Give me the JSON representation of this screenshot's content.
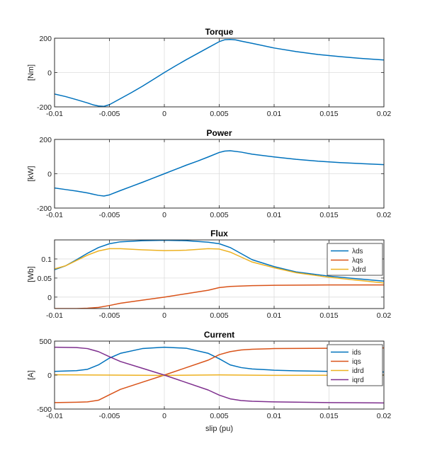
{
  "chart_data": [
    {
      "type": "line",
      "title": "Torque",
      "xlabel": "",
      "ylabel": "[Nm]",
      "xlim": [
        -0.01,
        0.02
      ],
      "ylim": [
        -200,
        200
      ],
      "grid": true,
      "xticks": [
        -0.01,
        -0.005,
        0,
        0.005,
        0.01,
        0.015,
        0.02
      ],
      "xtick_labels": [
        "-0.01",
        "-0.005",
        "0",
        "0.005",
        "0.01",
        "0.015",
        "0.02"
      ],
      "yticks": [
        -200,
        0,
        200
      ],
      "ytick_labels": [
        "-200",
        "0",
        "200"
      ],
      "legend": null,
      "series": [
        {
          "color": "#0072BD",
          "x": [
            -0.01,
            -0.009,
            -0.008,
            -0.007,
            -0.0065,
            -0.006,
            -0.0055,
            -0.005,
            -0.004,
            -0.003,
            -0.002,
            -0.001,
            0,
            0.001,
            0.002,
            0.003,
            0.004,
            0.005,
            0.0055,
            0.006,
            0.0065,
            0.007,
            0.008,
            0.01,
            0.012,
            0.014,
            0.016,
            0.018,
            0.02
          ],
          "y": [
            -125,
            -140,
            -158,
            -177,
            -188,
            -195,
            -197,
            -187,
            -152,
            -117,
            -80,
            -40,
            0,
            38,
            75,
            110,
            145,
            180,
            191,
            193,
            190,
            183,
            170,
            143,
            122,
            105,
            93,
            82,
            73
          ]
        }
      ]
    },
    {
      "type": "line",
      "title": "Power",
      "xlabel": "",
      "ylabel": "[kW]",
      "xlim": [
        -0.01,
        0.02
      ],
      "ylim": [
        -200,
        200
      ],
      "grid": true,
      "xticks": [
        -0.01,
        -0.005,
        0,
        0.005,
        0.01,
        0.015,
        0.02
      ],
      "xtick_labels": [
        "-0.01",
        "-0.005",
        "0",
        "0.005",
        "0.01",
        "0.015",
        "0.02"
      ],
      "yticks": [
        -200,
        0,
        200
      ],
      "ytick_labels": [
        "-200",
        "0",
        "200"
      ],
      "legend": null,
      "series": [
        {
          "color": "#0072BD",
          "x": [
            -0.01,
            -0.009,
            -0.008,
            -0.007,
            -0.006,
            -0.0055,
            -0.005,
            -0.004,
            -0.003,
            -0.002,
            -0.001,
            0,
            0.001,
            0.002,
            0.003,
            0.004,
            0.005,
            0.0055,
            0.006,
            0.007,
            0.008,
            0.01,
            0.012,
            0.014,
            0.016,
            0.018,
            0.02
          ],
          "y": [
            -83,
            -92,
            -101,
            -112,
            -126,
            -130,
            -123,
            -98,
            -74,
            -50,
            -25,
            0,
            25,
            50,
            73,
            98,
            124,
            132,
            134,
            126,
            114,
            98,
            84,
            73,
            65,
            59,
            53
          ]
        }
      ]
    },
    {
      "type": "line",
      "title": "Flux",
      "xlabel": "",
      "ylabel": "[Wb]",
      "xlim": [
        -0.01,
        0.02
      ],
      "ylim": [
        -0.03,
        0.15
      ],
      "grid": true,
      "xticks": [
        -0.01,
        -0.005,
        0,
        0.005,
        0.01,
        0.015,
        0.02
      ],
      "xtick_labels": [
        "-0.01",
        "-0.005",
        "0",
        "0.005",
        "0.01",
        "0.015",
        "0.02"
      ],
      "yticks": [
        0,
        0.05,
        0.1
      ],
      "ytick_labels": [
        "0",
        "0.05",
        "0.1"
      ],
      "legend": {
        "placement": "top-right",
        "entries": [
          "λds",
          "λqs",
          "λdrd"
        ]
      },
      "series": [
        {
          "name": "λds",
          "color": "#0072BD",
          "x": [
            -0.01,
            -0.009,
            -0.008,
            -0.007,
            -0.006,
            -0.005,
            -0.004,
            -0.002,
            0,
            0.002,
            0.004,
            0.005,
            0.006,
            0.007,
            0.008,
            0.01,
            0.012,
            0.015,
            0.018,
            0.02
          ],
          "y": [
            0.072,
            0.082,
            0.098,
            0.115,
            0.13,
            0.14,
            0.145,
            0.148,
            0.149,
            0.148,
            0.144,
            0.14,
            0.13,
            0.114,
            0.098,
            0.08,
            0.066,
            0.055,
            0.047,
            0.042
          ]
        },
        {
          "name": "λqs",
          "color": "#D95319",
          "x": [
            -0.01,
            -0.008,
            -0.007,
            -0.006,
            -0.005,
            -0.004,
            -0.002,
            0,
            0.002,
            0.004,
            0.005,
            0.006,
            0.008,
            0.01,
            0.015,
            0.02
          ],
          "y": [
            -0.03,
            -0.03,
            -0.029,
            -0.027,
            -0.022,
            -0.016,
            -0.008,
            0,
            0.009,
            0.018,
            0.025,
            0.028,
            0.03,
            0.031,
            0.032,
            0.032
          ]
        },
        {
          "name": "λdrd",
          "color": "#EDB120",
          "x": [
            -0.01,
            -0.009,
            -0.008,
            -0.007,
            -0.006,
            -0.005,
            -0.004,
            -0.002,
            0,
            0.002,
            0.004,
            0.005,
            0.006,
            0.007,
            0.008,
            0.01,
            0.012,
            0.015,
            0.018,
            0.02
          ],
          "y": [
            0.074,
            0.082,
            0.096,
            0.11,
            0.121,
            0.127,
            0.127,
            0.124,
            0.122,
            0.123,
            0.127,
            0.126,
            0.118,
            0.105,
            0.092,
            0.077,
            0.064,
            0.052,
            0.043,
            0.037
          ]
        }
      ]
    },
    {
      "type": "line",
      "title": "Current",
      "xlabel": "slip (pu)",
      "ylabel": "[A]",
      "xlim": [
        -0.01,
        0.02
      ],
      "ylim": [
        -500,
        500
      ],
      "grid": true,
      "xticks": [
        -0.01,
        -0.005,
        0,
        0.005,
        0.01,
        0.015,
        0.02
      ],
      "xtick_labels": [
        "-0.01",
        "-0.005",
        "0",
        "0.005",
        "0.01",
        "0.015",
        "0.02"
      ],
      "yticks": [
        -500,
        0,
        500
      ],
      "ytick_labels": [
        "-500",
        "0",
        "500"
      ],
      "legend": {
        "placement": "top-right",
        "entries": [
          "ids",
          "iqs",
          "idrd",
          "iqrd"
        ]
      },
      "series": [
        {
          "name": "ids",
          "color": "#0072BD",
          "x": [
            -0.01,
            -0.008,
            -0.007,
            -0.006,
            -0.005,
            -0.004,
            -0.002,
            0,
            0.002,
            0.004,
            0.005,
            0.006,
            0.007,
            0.008,
            0.01,
            0.012,
            0.015,
            0.018,
            0.02
          ],
          "y": [
            55,
            65,
            85,
            150,
            250,
            320,
            390,
            410,
            395,
            320,
            240,
            150,
            110,
            90,
            72,
            62,
            55,
            50,
            45
          ]
        },
        {
          "name": "iqs",
          "color": "#D95319",
          "x": [
            -0.01,
            -0.008,
            -0.007,
            -0.006,
            -0.005,
            -0.004,
            -0.002,
            0,
            0.002,
            0.004,
            0.005,
            0.006,
            0.007,
            0.008,
            0.01,
            0.015,
            0.02
          ],
          "y": [
            -405,
            -400,
            -395,
            -370,
            -290,
            -210,
            -105,
            0,
            110,
            220,
            300,
            345,
            370,
            380,
            390,
            395,
            400
          ]
        },
        {
          "name": "idrd",
          "color": "#EDB120",
          "x": [
            -0.01,
            -0.005,
            0,
            0.005,
            0.01,
            0.015,
            0.02
          ],
          "y": [
            5,
            0,
            -5,
            2,
            -4,
            -2,
            0
          ]
        },
        {
          "name": "iqrd",
          "color": "#7E2F8E",
          "x": [
            -0.01,
            -0.008,
            -0.007,
            -0.006,
            -0.005,
            -0.004,
            -0.002,
            0,
            0.002,
            0.004,
            0.005,
            0.006,
            0.007,
            0.008,
            0.01,
            0.015,
            0.02
          ],
          "y": [
            410,
            405,
            390,
            345,
            270,
            200,
            100,
            0,
            -110,
            -220,
            -295,
            -350,
            -375,
            -385,
            -395,
            -405,
            -410
          ]
        }
      ]
    }
  ]
}
